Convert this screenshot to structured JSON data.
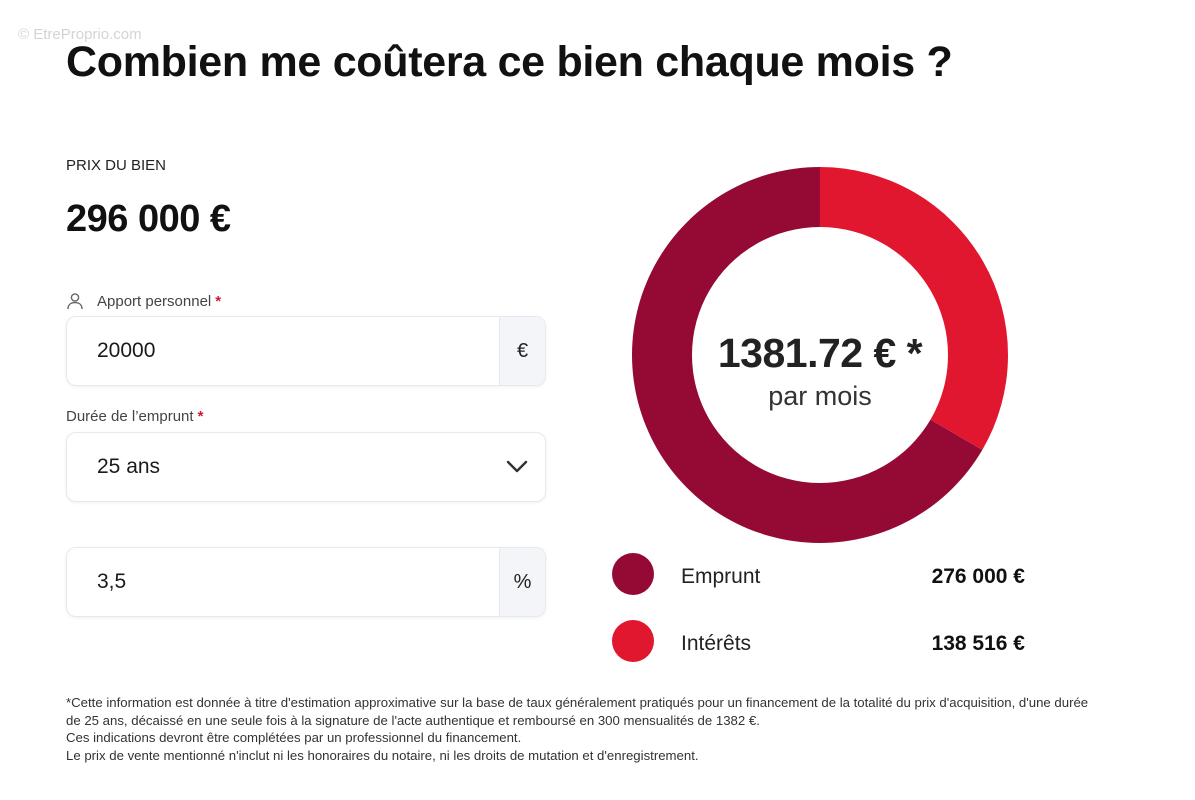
{
  "watermark": "© EtreProprio.com",
  "title": "Combien me coûtera ce bien chaque mois ?",
  "price": {
    "label": "PRIX DU BIEN",
    "value": "296 000 €"
  },
  "apport": {
    "label": "Apport personnel",
    "required_mark": "*",
    "value": "20000",
    "suffix": "€",
    "icon": "user-icon"
  },
  "duree": {
    "label": "Durée de l’emprunt",
    "required_mark": "*",
    "value": "25 ans",
    "icon": "chevron-down-icon"
  },
  "taux": {
    "value": "3,5",
    "suffix": "%"
  },
  "summary": {
    "monthly": "1381.72 € *",
    "per_month": "par mois"
  },
  "colors": {
    "emprunt": "#940a35",
    "interets": "#e1172f"
  },
  "chart_data": {
    "type": "pie",
    "categories": [
      "Emprunt",
      "Intérêts"
    ],
    "values": [
      276000,
      138516
    ],
    "donut": true
  },
  "legend": [
    {
      "name": "Emprunt",
      "value": "276 000 €"
    },
    {
      "name": "Intérêts",
      "value": "138 516 €"
    }
  ],
  "footnote": [
    "*Cette information est donnée à titre d'estimation approximative sur la base de taux généralement pratiqués pour un financement de la totalité du prix d'acquisition, d'une durée",
    "de 25 ans, décaissé en une seule fois à la signature de l'acte authentique et remboursé en 300 mensualités de 1382 €.",
    "Ces indications devront être complétées par un professionnel du financement.",
    "Le prix de vente mentionné n'inclut ni les honoraires du notaire, ni les droits de mutation et d'enregistrement."
  ]
}
